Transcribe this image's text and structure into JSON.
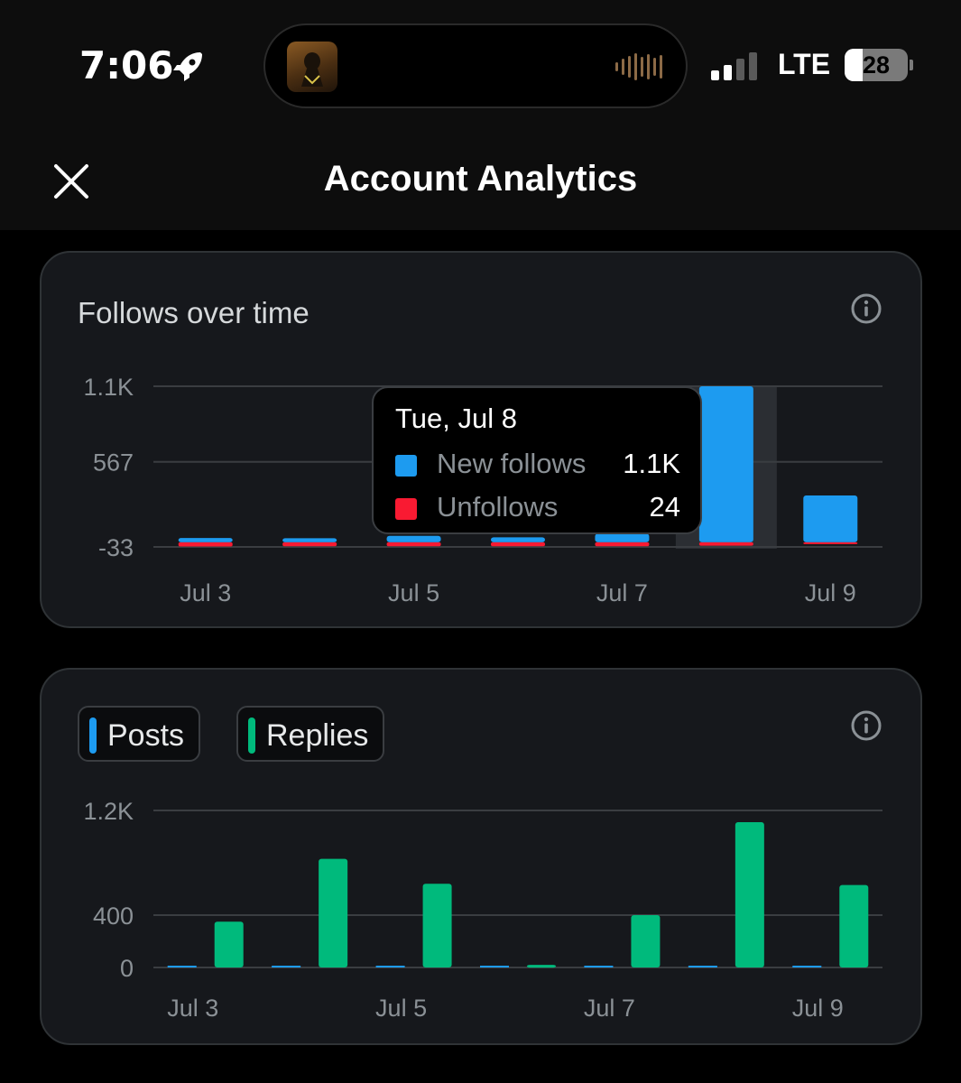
{
  "status_bar": {
    "time": "7:06",
    "network": "LTE",
    "battery": "28",
    "battery_level": 0.28,
    "icons": [
      "rocket-icon",
      "signal-icon",
      "audio-wave-icon"
    ]
  },
  "header": {
    "title": "Account Analytics",
    "close_icon": "close-icon"
  },
  "colors": {
    "blue": "#1d9bf0",
    "red": "#f91a32",
    "green": "#00ba7c",
    "card_bg": "#16181c"
  },
  "follows_card": {
    "title": "Follows over time",
    "info_icon": "info-icon",
    "tooltip": {
      "date": "Tue, Jul 8",
      "rows": [
        {
          "label": "New follows",
          "value": "1.1K"
        },
        {
          "label": "Unfollows",
          "value": "24"
        }
      ]
    }
  },
  "posts_card": {
    "legend": [
      "Posts",
      "Replies"
    ],
    "info_icon": "info-icon"
  },
  "chart_data": [
    {
      "type": "bar",
      "title": "Follows over time",
      "x": [
        "Jul 3",
        "Jul 4",
        "Jul 5",
        "Jul 6",
        "Jul 7",
        "Jul 8",
        "Jul 9"
      ],
      "xticks": [
        "Jul 3",
        "Jul 5",
        "Jul 7",
        "Jul 9"
      ],
      "yticks": [
        "1.1K",
        "567",
        "-33"
      ],
      "ytick_values": [
        1100,
        567,
        -33
      ],
      "ylim": [
        -33,
        1100
      ],
      "series": [
        {
          "name": "New follows",
          "color": "#1d9bf0",
          "values": [
            30,
            28,
            45,
            35,
            60,
            1100,
            330
          ]
        },
        {
          "name": "Unfollows",
          "color": "#f91a32",
          "values": [
            -30,
            -28,
            -28,
            -28,
            -28,
            -24,
            -5
          ]
        }
      ],
      "highlight": "Jul 8",
      "grid": true
    },
    {
      "type": "bar",
      "x": [
        "Jul 3",
        "Jul 4",
        "Jul 5",
        "Jul 6",
        "Jul 7",
        "Jul 8",
        "Jul 9"
      ],
      "xticks": [
        "Jul 3",
        "Jul 5",
        "Jul 7",
        "Jul 9"
      ],
      "yticks": [
        "1.2K",
        "400",
        "0"
      ],
      "ytick_values": [
        1200,
        400,
        0
      ],
      "ylim": [
        0,
        1200
      ],
      "series": [
        {
          "name": "Posts",
          "color": "#1d9bf0",
          "values": [
            2,
            2,
            2,
            0,
            2,
            3,
            2
          ]
        },
        {
          "name": "Replies",
          "color": "#00ba7c",
          "values": [
            350,
            830,
            640,
            20,
            400,
            1110,
            630
          ]
        }
      ],
      "grid": true
    }
  ]
}
